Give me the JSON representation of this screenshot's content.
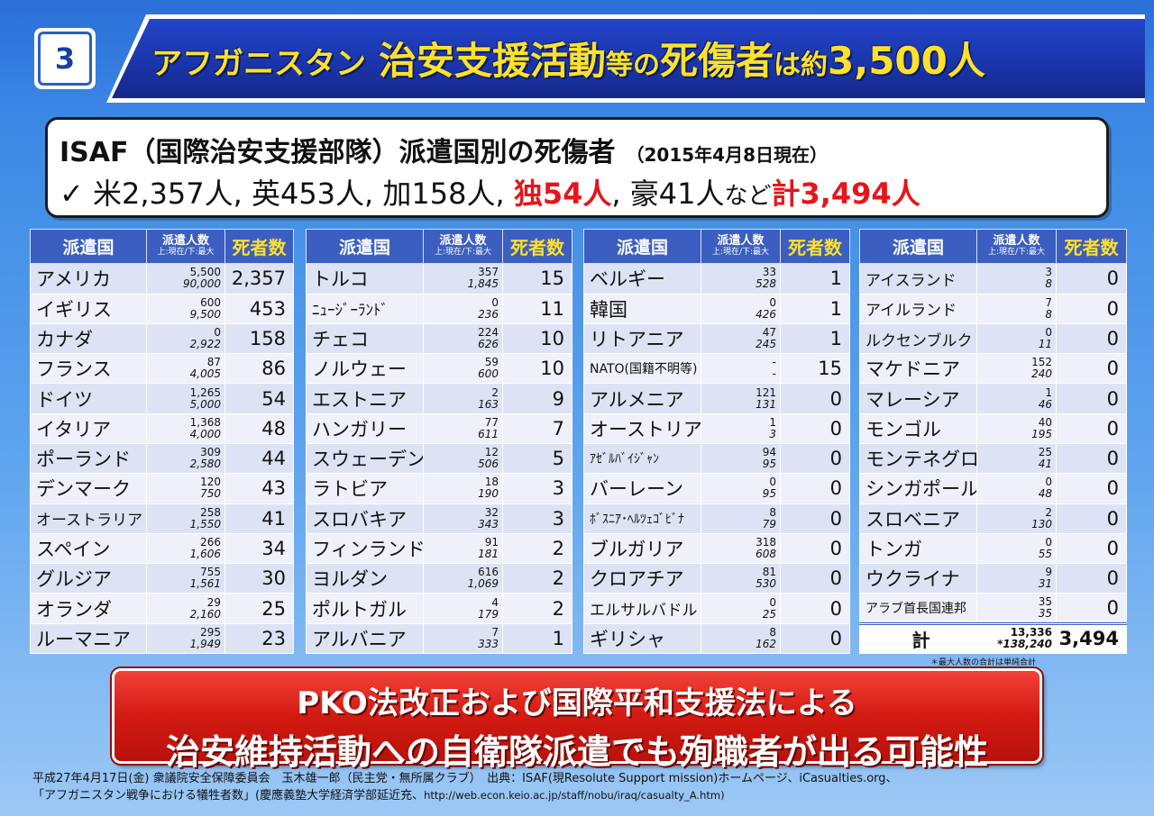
{
  "slide_number": "3",
  "title": {
    "part1": "アフガニスタン",
    "part2": "治安支援活動",
    "part3": "等の",
    "part4": "死傷者",
    "part5": "は約",
    "part6": "3,500人"
  },
  "summary": {
    "heading": "ISAF（国際治安支援部隊）派遣国別の死傷者",
    "date": "（2015年4月8日現在）",
    "check": "✓",
    "us": "米2,357人,",
    "uk": "英453人,",
    "ca": "加158人,",
    "de": "独54人",
    "de_sep": ",",
    "au": "豪41人",
    "etc": "など",
    "total": "計3,494人"
  },
  "table_headers": {
    "country": "派遣国",
    "deployed": "派遣人数",
    "deployed_sub": "上:現在/下:最大",
    "deaths": "死者数"
  },
  "tables": [
    {
      "rows": [
        {
          "country": "アメリカ",
          "current": "5,500",
          "max": "90,000",
          "deaths": "2,357"
        },
        {
          "country": "イギリス",
          "current": "600",
          "max": "9,500",
          "deaths": "453"
        },
        {
          "country": "カナダ",
          "current": "0",
          "max": "2,922",
          "deaths": "158"
        },
        {
          "country": "フランス",
          "current": "87",
          "max": "4,005",
          "deaths": "86"
        },
        {
          "country": "ドイツ",
          "current": "1,265",
          "max": "5,000",
          "deaths": "54"
        },
        {
          "country": "イタリア",
          "current": "1,368",
          "max": "4,000",
          "deaths": "48"
        },
        {
          "country": "ポーランド",
          "current": "309",
          "max": "2,580",
          "deaths": "44"
        },
        {
          "country": "デンマーク",
          "current": "120",
          "max": "750",
          "deaths": "43"
        },
        {
          "country": "オーストラリア",
          "current": "258",
          "max": "1,550",
          "deaths": "41",
          "size": "sm"
        },
        {
          "country": "スペイン",
          "current": "266",
          "max": "1,606",
          "deaths": "34"
        },
        {
          "country": "グルジア",
          "current": "755",
          "max": "1,561",
          "deaths": "30"
        },
        {
          "country": "オランダ",
          "current": "29",
          "max": "2,160",
          "deaths": "25"
        },
        {
          "country": "ルーマニア",
          "current": "295",
          "max": "1,949",
          "deaths": "23"
        }
      ]
    },
    {
      "rows": [
        {
          "country": "トルコ",
          "current": "357",
          "max": "1,845",
          "deaths": "15"
        },
        {
          "country": "ﾆｭｰｼﾞｰﾗﾝﾄﾞ",
          "current": "0",
          "max": "236",
          "deaths": "11",
          "size": "sm"
        },
        {
          "country": "チェコ",
          "current": "224",
          "max": "626",
          "deaths": "10"
        },
        {
          "country": "ノルウェー",
          "current": "59",
          "max": "600",
          "deaths": "10"
        },
        {
          "country": "エストニア",
          "current": "2",
          "max": "163",
          "deaths": "9"
        },
        {
          "country": "ハンガリー",
          "current": "77",
          "max": "611",
          "deaths": "7"
        },
        {
          "country": "スウェーデン",
          "current": "12",
          "max": "506",
          "deaths": "5"
        },
        {
          "country": "ラトビア",
          "current": "18",
          "max": "190",
          "deaths": "3"
        },
        {
          "country": "スロバキア",
          "current": "32",
          "max": "343",
          "deaths": "3"
        },
        {
          "country": "フィンランド",
          "current": "91",
          "max": "181",
          "deaths": "2"
        },
        {
          "country": "ヨルダン",
          "current": "616",
          "max": "1,069",
          "deaths": "2"
        },
        {
          "country": "ポルトガル",
          "current": "4",
          "max": "179",
          "deaths": "2"
        },
        {
          "country": "アルバニア",
          "current": "7",
          "max": "333",
          "deaths": "1"
        }
      ]
    },
    {
      "rows": [
        {
          "country": "ベルギー",
          "current": "33",
          "max": "528",
          "deaths": "1"
        },
        {
          "country": "韓国",
          "current": "0",
          "max": "426",
          "deaths": "1"
        },
        {
          "country": "リトアニア",
          "current": "47",
          "max": "245",
          "deaths": "1"
        },
        {
          "country": "NATO(国籍不明等)",
          "current": "-",
          "max": "-",
          "deaths": "15",
          "size": "xs"
        },
        {
          "country": "アルメニア",
          "current": "121",
          "max": "131",
          "deaths": "0"
        },
        {
          "country": "オーストリア",
          "current": "1",
          "max": "3",
          "deaths": "0"
        },
        {
          "country": "ｱｾﾞﾙﾊﾞｲｼﾞｬﾝ",
          "current": "94",
          "max": "95",
          "deaths": "0",
          "size": "xs"
        },
        {
          "country": "バーレーン",
          "current": "0",
          "max": "95",
          "deaths": "0"
        },
        {
          "country": "ﾎﾞｽﾆｱ･ﾍﾙﾂｪｺﾞﾋﾞﾅ",
          "current": "8",
          "max": "79",
          "deaths": "0",
          "size": "xs"
        },
        {
          "country": "ブルガリア",
          "current": "318",
          "max": "608",
          "deaths": "0"
        },
        {
          "country": "クロアチア",
          "current": "81",
          "max": "530",
          "deaths": "0"
        },
        {
          "country": "エルサルバドル",
          "current": "0",
          "max": "25",
          "deaths": "0",
          "size": "sm"
        },
        {
          "country": "ギリシャ",
          "current": "8",
          "max": "162",
          "deaths": "0"
        }
      ]
    },
    {
      "rows": [
        {
          "country": "アイスランド",
          "current": "3",
          "max": "8",
          "deaths": "0",
          "size": "sm"
        },
        {
          "country": "アイルランド",
          "current": "7",
          "max": "8",
          "deaths": "0",
          "size": "sm"
        },
        {
          "country": "ルクセンブルク",
          "current": "0",
          "max": "11",
          "deaths": "0",
          "size": "sm"
        },
        {
          "country": "マケドニア",
          "current": "152",
          "max": "240",
          "deaths": "0"
        },
        {
          "country": "マレーシア",
          "current": "1",
          "max": "46",
          "deaths": "0"
        },
        {
          "country": "モンゴル",
          "current": "40",
          "max": "195",
          "deaths": "0"
        },
        {
          "country": "モンテネグロ",
          "current": "25",
          "max": "41",
          "deaths": "0"
        },
        {
          "country": "シンガポール",
          "current": "0",
          "max": "48",
          "deaths": "0"
        },
        {
          "country": "スロベニア",
          "current": "2",
          "max": "130",
          "deaths": "0"
        },
        {
          "country": "トンガ",
          "current": "0",
          "max": "55",
          "deaths": "0"
        },
        {
          "country": "ウクライナ",
          "current": "9",
          "max": "31",
          "deaths": "0"
        },
        {
          "country": "アラブ首長国連邦",
          "current": "35",
          "max": "35",
          "deaths": "0",
          "size": "xs"
        }
      ],
      "total": {
        "label": "計",
        "current": "13,336",
        "max": "*138,240",
        "deaths": "3,494"
      }
    }
  ],
  "footnote": "＊最大人数の合計は単純合計",
  "conclusion": {
    "line1": "PKO法改正および国際平和支援法による",
    "line2": "治安維持活動への自衛隊派遣でも殉職者が出る可能性"
  },
  "footer": {
    "line1": "平成27年4月17日(金) 衆議院安全保障委員会　玉木雄一郎（民主党・無所属クラブ）　出典：ISAF(現Resolute Support mission)ホームページ、iCasualties.org、",
    "line2": "「アフガニスタン戦争における犠牲者数」(慶應義塾大学経済学部延近充、",
    "url": "http://web.econ.keio.ac.jp/staff/nobu/iraq/casualty_A.htm)"
  },
  "colors": {
    "title_yellow": "#ffe12b",
    "banner_blue": "#1a34a8",
    "table_header": "#3b5ec0",
    "highlight_red": "#e8141a",
    "conclusion_red": "#d21a12"
  }
}
